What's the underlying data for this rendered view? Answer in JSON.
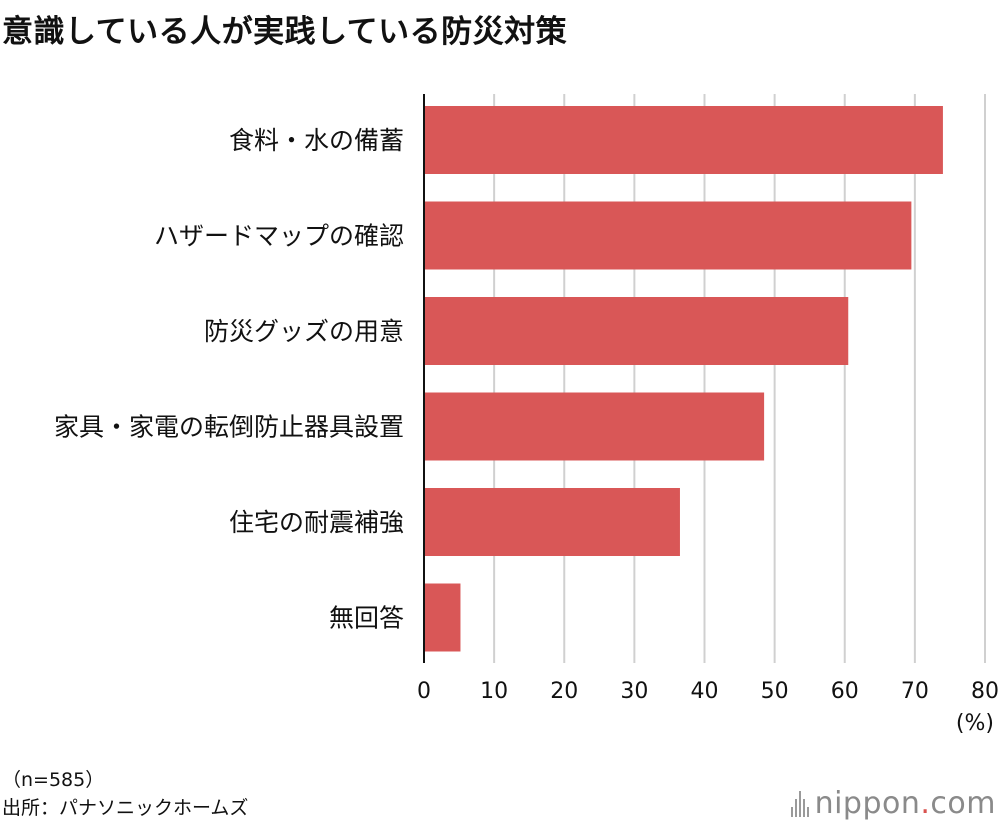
{
  "title": "意識している人が実践している防災対策",
  "notes": {
    "sample": "（n=585）",
    "source": "出所：パナソニックホームズ"
  },
  "brand": {
    "name": "nippon",
    "dot": ".",
    "suffix": "com"
  },
  "colors": {
    "bar": "#d95757",
    "grid": "#d0d0d0",
    "axis": "#111111"
  },
  "chart_data": {
    "type": "bar",
    "orientation": "horizontal",
    "categories": [
      "食料・水の備蓄",
      "ハザードマップの確認",
      "防災グッズの用意",
      "家具・家電の転倒防止器具設置",
      "住宅の耐震補強",
      "無回答"
    ],
    "values": [
      74.0,
      69.5,
      60.5,
      48.5,
      36.5,
      5.2
    ],
    "xlim": [
      0,
      80
    ],
    "xticks": [
      0,
      10,
      20,
      30,
      40,
      50,
      60,
      70,
      80
    ],
    "unit": "(%)",
    "grid": true
  }
}
